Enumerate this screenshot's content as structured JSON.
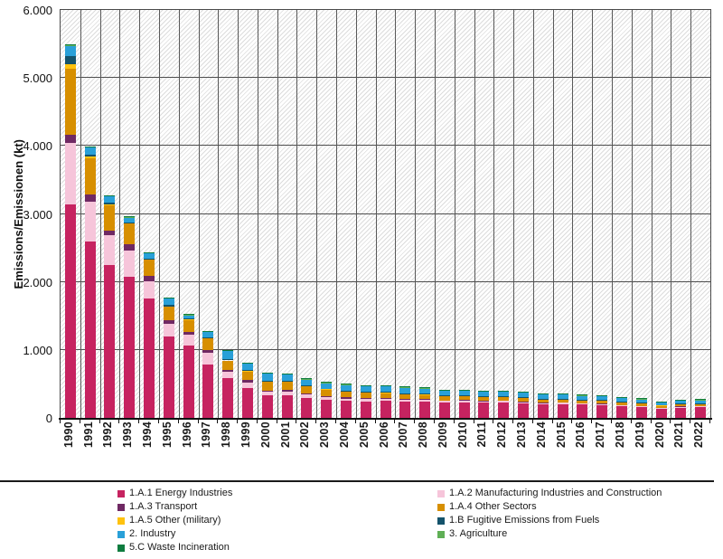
{
  "chart_data": {
    "type": "bar",
    "subtype": "stacked",
    "title": "",
    "xlabel": "",
    "ylabel": "Emissions/Emissionen (kt)",
    "ylim": [
      0,
      6000
    ],
    "ytick_step": 1000,
    "ytick_labels": [
      "0",
      "1.000",
      "2.000",
      "3.000",
      "4.000",
      "5.000",
      "6.000"
    ],
    "grid": true,
    "legend_position": "bottom",
    "categories": [
      "1990",
      "1991",
      "1992",
      "1993",
      "1994",
      "1995",
      "1996",
      "1997",
      "1998",
      "1999",
      "2000",
      "2001",
      "2002",
      "2003",
      "2004",
      "2005",
      "2006",
      "2007",
      "2008",
      "2009",
      "2010",
      "2011",
      "2012",
      "2013",
      "2014",
      "2015",
      "2016",
      "2017",
      "2018",
      "2019",
      "2020",
      "2021",
      "2022"
    ],
    "series": [
      {
        "name": "1.A.1 Energy Industries",
        "color": "#C62360",
        "values": [
          3140,
          2600,
          2250,
          2080,
          1750,
          1200,
          1070,
          790,
          590,
          440,
          330,
          335,
          295,
          265,
          250,
          245,
          250,
          235,
          240,
          225,
          230,
          225,
          230,
          215,
          200,
          205,
          195,
          192,
          172,
          162,
          132,
          152,
          157
        ]
      },
      {
        "name": "1.A.2 Manufacturing Industries and Construction",
        "color": "#F6C5DA",
        "values": [
          910,
          580,
          440,
          385,
          265,
          185,
          155,
          170,
          85,
          85,
          50,
          50,
          45,
          40,
          35,
          32,
          30,
          27,
          25,
          22,
          22,
          20,
          20,
          18,
          16,
          16,
          15,
          14,
          13,
          12,
          11,
          11,
          10
        ]
      },
      {
        "name": "1.A.3 Transport",
        "color": "#6F2963",
        "values": [
          110,
          105,
          70,
          90,
          70,
          50,
          45,
          35,
          30,
          30,
          25,
          22,
          20,
          18,
          16,
          15,
          14,
          13,
          12,
          10,
          10,
          9,
          9,
          8,
          8,
          7,
          7,
          6,
          6,
          5,
          5,
          5,
          5
        ]
      },
      {
        "name": "1.A.4 Other Sectors",
        "color": "#D78F00",
        "values": [
          970,
          535,
          370,
          300,
          240,
          200,
          170,
          170,
          140,
          130,
          125,
          120,
          105,
          95,
          85,
          78,
          72,
          65,
          62,
          58,
          58,
          52,
          50,
          48,
          42,
          42,
          40,
          38,
          35,
          32,
          30,
          30,
          28
        ]
      },
      {
        "name": "1.A.5 Other (military)",
        "color": "#FFC20E",
        "values": [
          70,
          25,
          15,
          10,
          8,
          5,
          5,
          5,
          4,
          3,
          3,
          3,
          2,
          2,
          2,
          2,
          2,
          2,
          2,
          2,
          2,
          2,
          2,
          2,
          2,
          2,
          2,
          2,
          2,
          2,
          2,
          2,
          2
        ]
      },
      {
        "name": "1.B Fugitive Emissions from Fuels",
        "color": "#14536B",
        "values": [
          120,
          25,
          25,
          15,
          15,
          20,
          15,
          15,
          15,
          12,
          12,
          12,
          12,
          12,
          12,
          12,
          12,
          12,
          12,
          10,
          10,
          10,
          10,
          10,
          10,
          10,
          10,
          10,
          10,
          9,
          8,
          8,
          8
        ]
      },
      {
        "name": "2. Industry",
        "color": "#29A0D8",
        "values": [
          150,
          110,
          85,
          65,
          70,
          90,
          50,
          75,
          115,
          95,
          105,
          95,
          85,
          80,
          85,
          85,
          85,
          90,
          78,
          72,
          68,
          65,
          62,
          68,
          62,
          58,
          55,
          55,
          52,
          48,
          42,
          48,
          48
        ]
      },
      {
        "name": "3. Agriculture",
        "color": "#5FAF55",
        "values": [
          5,
          3,
          3,
          3,
          3,
          3,
          3,
          3,
          3,
          3,
          3,
          3,
          3,
          3,
          3,
          3,
          3,
          3,
          3,
          3,
          3,
          3,
          3,
          3,
          3,
          3,
          3,
          3,
          3,
          3,
          3,
          3,
          3
        ]
      },
      {
        "name": "5.C Waste Incineration",
        "color": "#0E7C3F",
        "values": [
          15,
          10,
          10,
          8,
          7,
          6,
          5,
          5,
          5,
          5,
          5,
          5,
          5,
          5,
          5,
          5,
          5,
          5,
          5,
          5,
          5,
          5,
          5,
          5,
          5,
          5,
          5,
          5,
          5,
          5,
          5,
          5,
          5
        ]
      }
    ],
    "legend_columns": [
      [
        0,
        2,
        4,
        6,
        8
      ],
      [
        1,
        3,
        5,
        7
      ]
    ]
  }
}
